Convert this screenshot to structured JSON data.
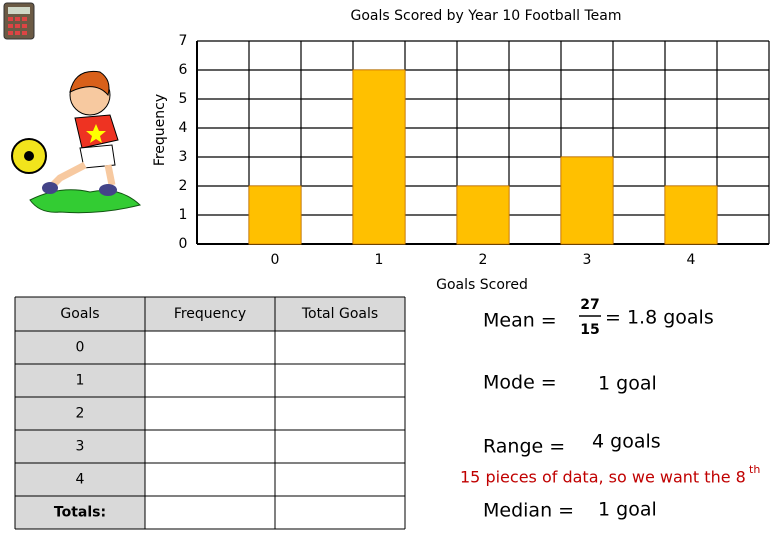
{
  "chart_data": {
    "type": "bar",
    "title": "Goals Scored by Year 10 Football Team",
    "x_label": "Goals Scored",
    "y_label": "Frequency",
    "categories": [
      "0",
      "1",
      "2",
      "3",
      "4"
    ],
    "values": [
      2,
      6,
      2,
      3,
      2
    ],
    "color": "#ffc000",
    "ylim": [
      0,
      7
    ],
    "yticks": [
      0,
      1,
      2,
      3,
      4,
      5,
      6,
      7
    ],
    "grid": true
  },
  "table": {
    "header": [
      "Goals",
      "Frequency",
      "Total Goals"
    ],
    "rows": [
      [
        "0"
      ],
      [
        "1"
      ],
      [
        "2"
      ],
      [
        "3"
      ],
      [
        "4"
      ],
      [
        "Totals:"
      ]
    ]
  },
  "stats": {
    "mean": {
      "label": "Mean =",
      "numerator": "27",
      "denominator": "15",
      "result": "= 1.8 goals"
    },
    "mode": {
      "label": "Mode =",
      "result": "1 goal"
    },
    "range": {
      "label": "Range =",
      "result": "4 goals"
    },
    "note": {
      "text": "15 pieces of data, so we want the 8",
      "sup": "th"
    },
    "median": {
      "label": "Median =",
      "result": "1 goal"
    }
  }
}
